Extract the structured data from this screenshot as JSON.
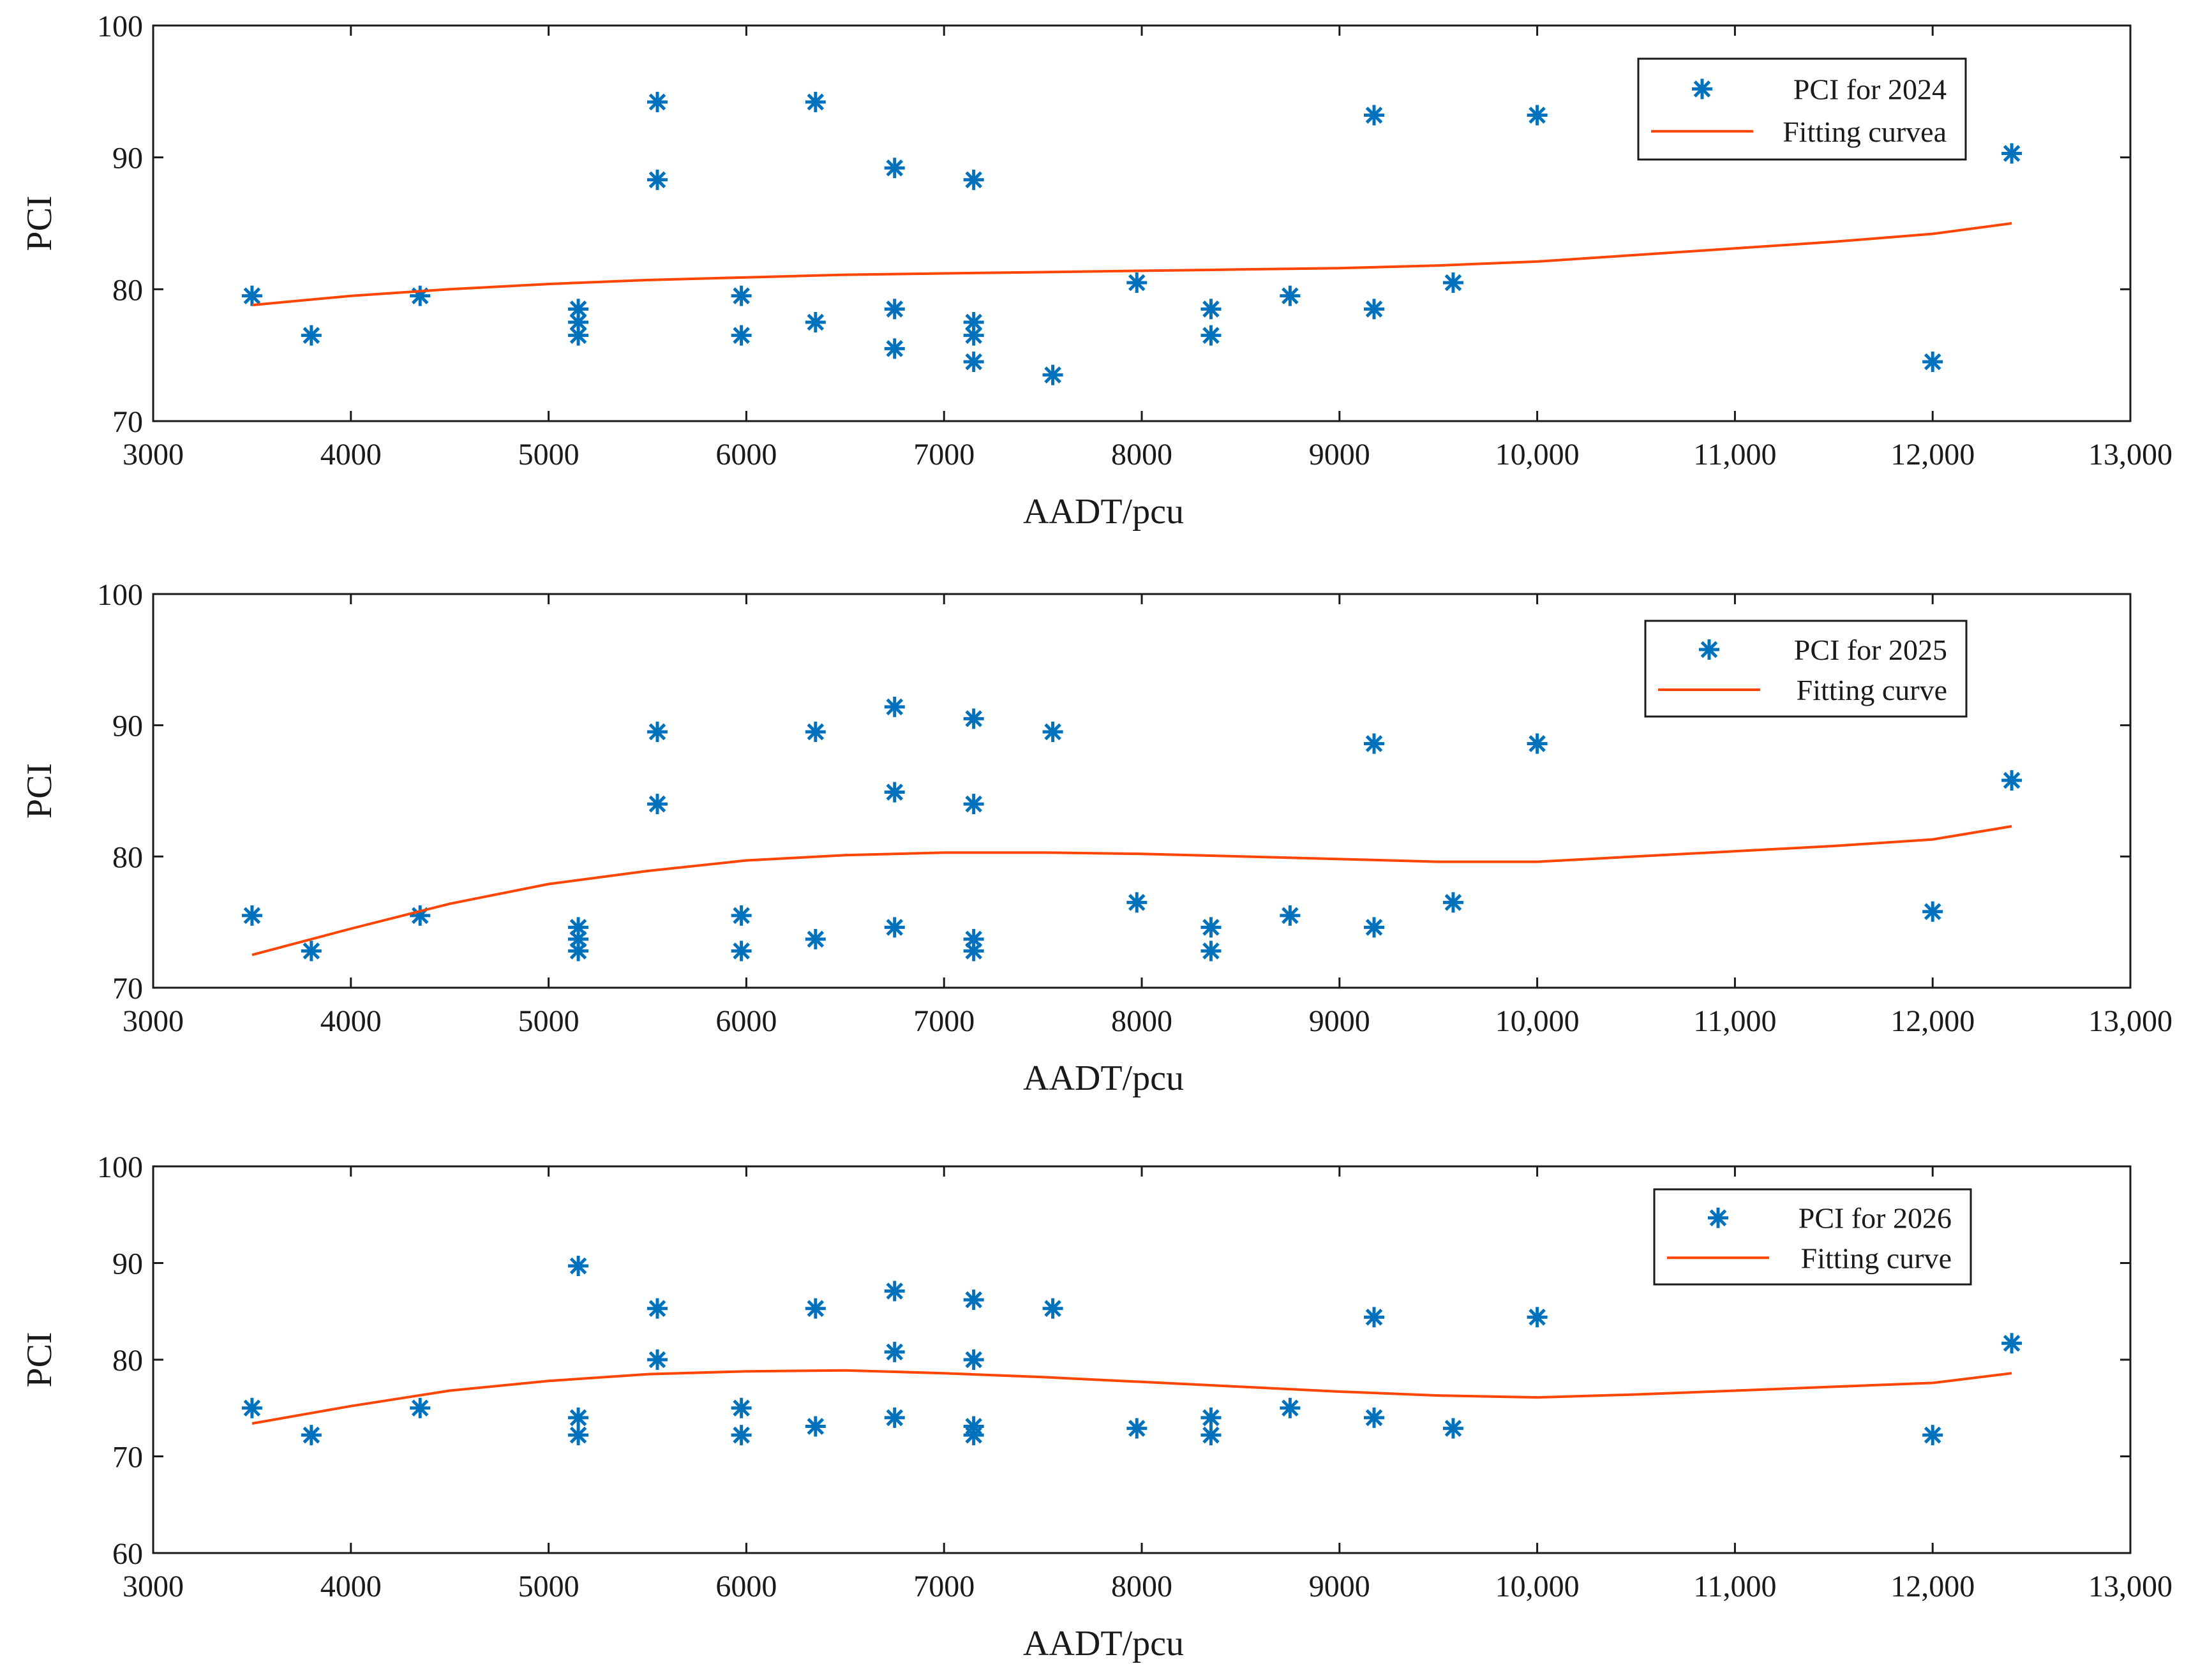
{
  "colors": {
    "marker": "#0072BD",
    "curve": "#FF4500",
    "axis": "#1a1a1a"
  },
  "chart_data": [
    {
      "type": "scatter",
      "xlabel": "AADT/pcu",
      "ylabel": "PCI",
      "xlim": [
        3000,
        13000
      ],
      "ylim": [
        70,
        100
      ],
      "xticks": [
        3000,
        4000,
        5000,
        6000,
        7000,
        8000,
        9000,
        10000,
        11000,
        12000,
        13000
      ],
      "xtick_labels": [
        "3000",
        "4000",
        "5000",
        "6000",
        "7000",
        "8000",
        "9000",
        "10,000",
        "11,000",
        "12,000",
        "13,000"
      ],
      "yticks": [
        70,
        80,
        90,
        100
      ],
      "ytick_labels": [
        "70",
        "80",
        "90",
        "100"
      ],
      "grid": false,
      "legend_position": "top-right",
      "series": [
        {
          "name": "PCI for 2024",
          "type": "scatter",
          "points": [
            [
              3500,
              79.5
            ],
            [
              3800,
              76.5
            ],
            [
              4350,
              79.5
            ],
            [
              5150,
              78.5
            ],
            [
              5150,
              77.5
            ],
            [
              5150,
              76.5
            ],
            [
              5550,
              94.2
            ],
            [
              5550,
              88.3
            ],
            [
              5975,
              79.5
            ],
            [
              5975,
              76.5
            ],
            [
              6350,
              94.2
            ],
            [
              6350,
              77.5
            ],
            [
              6750,
              89.2
            ],
            [
              6750,
              78.5
            ],
            [
              6750,
              75.5
            ],
            [
              7150,
              88.3
            ],
            [
              7150,
              77.5
            ],
            [
              7150,
              76.5
            ],
            [
              7150,
              74.5
            ],
            [
              7550,
              73.5
            ],
            [
              7975,
              80.5
            ],
            [
              8350,
              78.5
            ],
            [
              8350,
              76.5
            ],
            [
              8750,
              79.5
            ],
            [
              9175,
              93.2
            ],
            [
              9175,
              78.5
            ],
            [
              9575,
              80.5
            ],
            [
              10000,
              93.2
            ],
            [
              12000,
              74.5
            ],
            [
              12400,
              90.3
            ]
          ]
        },
        {
          "name": "Fitting curvea",
          "type": "line",
          "points": [
            [
              3500,
              78.8
            ],
            [
              4000,
              79.5
            ],
            [
              4500,
              80.0
            ],
            [
              5000,
              80.4
            ],
            [
              5500,
              80.7
            ],
            [
              6000,
              80.9
            ],
            [
              6500,
              81.1
            ],
            [
              7000,
              81.2
            ],
            [
              7500,
              81.3
            ],
            [
              8000,
              81.4
            ],
            [
              8500,
              81.5
            ],
            [
              9000,
              81.6
            ],
            [
              9500,
              81.8
            ],
            [
              10000,
              82.1
            ],
            [
              10500,
              82.6
            ],
            [
              11000,
              83.1
            ],
            [
              11500,
              83.6
            ],
            [
              12000,
              84.2
            ],
            [
              12400,
              85.0
            ]
          ]
        }
      ]
    },
    {
      "type": "scatter",
      "xlabel": "AADT/pcu",
      "ylabel": "PCI",
      "xlim": [
        3000,
        13000
      ],
      "ylim": [
        70,
        100
      ],
      "xticks": [
        3000,
        4000,
        5000,
        6000,
        7000,
        8000,
        9000,
        10000,
        11000,
        12000,
        13000
      ],
      "xtick_labels": [
        "3000",
        "4000",
        "5000",
        "6000",
        "7000",
        "8000",
        "9000",
        "10,000",
        "11,000",
        "12,000",
        "13,000"
      ],
      "yticks": [
        70,
        80,
        90,
        100
      ],
      "ytick_labels": [
        "70",
        "80",
        "90",
        "100"
      ],
      "grid": false,
      "legend_position": "top-right",
      "series": [
        {
          "name": "PCI for 2025",
          "type": "scatter",
          "points": [
            [
              3500,
              75.5
            ],
            [
              3800,
              72.8
            ],
            [
              4350,
              75.5
            ],
            [
              5150,
              74.6
            ],
            [
              5150,
              73.7
            ],
            [
              5150,
              72.8
            ],
            [
              5550,
              89.5
            ],
            [
              5550,
              84.0
            ],
            [
              5975,
              75.5
            ],
            [
              5975,
              72.8
            ],
            [
              6350,
              89.5
            ],
            [
              6350,
              73.7
            ],
            [
              6750,
              91.4
            ],
            [
              6750,
              84.9
            ],
            [
              6750,
              74.6
            ],
            [
              7150,
              90.5
            ],
            [
              7150,
              84.0
            ],
            [
              7150,
              73.7
            ],
            [
              7150,
              72.8
            ],
            [
              7550,
              89.5
            ],
            [
              7975,
              76.5
            ],
            [
              8350,
              74.6
            ],
            [
              8350,
              72.8
            ],
            [
              8750,
              75.5
            ],
            [
              9175,
              88.6
            ],
            [
              9175,
              74.6
            ],
            [
              9575,
              76.5
            ],
            [
              10000,
              88.6
            ],
            [
              12000,
              75.8
            ],
            [
              12400,
              85.8
            ]
          ]
        },
        {
          "name": "Fitting curve",
          "type": "line",
          "points": [
            [
              3500,
              72.5
            ],
            [
              4000,
              74.5
            ],
            [
              4500,
              76.4
            ],
            [
              5000,
              77.9
            ],
            [
              5500,
              78.9
            ],
            [
              6000,
              79.7
            ],
            [
              6500,
              80.1
            ],
            [
              7000,
              80.3
            ],
            [
              7500,
              80.3
            ],
            [
              8000,
              80.2
            ],
            [
              8500,
              80.0
            ],
            [
              9000,
              79.8
            ],
            [
              9500,
              79.6
            ],
            [
              10000,
              79.6
            ],
            [
              10500,
              80.0
            ],
            [
              11000,
              80.4
            ],
            [
              11500,
              80.8
            ],
            [
              12000,
              81.3
            ],
            [
              12400,
              82.3
            ]
          ]
        }
      ]
    },
    {
      "type": "scatter",
      "xlabel": "AADT/pcu",
      "ylabel": "PCI",
      "xlim": [
        3000,
        13000
      ],
      "ylim": [
        60,
        100
      ],
      "xticks": [
        3000,
        4000,
        5000,
        6000,
        7000,
        8000,
        9000,
        10000,
        11000,
        12000,
        13000
      ],
      "xtick_labels": [
        "3000",
        "4000",
        "5000",
        "6000",
        "7000",
        "8000",
        "9000",
        "10,000",
        "11,000",
        "12,000",
        "13,000"
      ],
      "yticks": [
        60,
        70,
        80,
        90,
        100
      ],
      "ytick_labels": [
        "60",
        "70",
        "80",
        "90",
        "100"
      ],
      "grid": false,
      "legend_position": "top-right",
      "series": [
        {
          "name": "PCI for 2026",
          "type": "scatter",
          "points": [
            [
              3500,
              75.0
            ],
            [
              3800,
              72.2
            ],
            [
              4350,
              75.0
            ],
            [
              5150,
              89.7
            ],
            [
              5150,
              74.0
            ],
            [
              5150,
              72.2
            ],
            [
              5550,
              85.3
            ],
            [
              5550,
              80.0
            ],
            [
              5975,
              75.0
            ],
            [
              5975,
              72.2
            ],
            [
              6350,
              85.3
            ],
            [
              6350,
              73.1
            ],
            [
              6750,
              87.1
            ],
            [
              6750,
              80.8
            ],
            [
              6750,
              74.0
            ],
            [
              7150,
              86.2
            ],
            [
              7150,
              80.0
            ],
            [
              7150,
              73.1
            ],
            [
              7150,
              72.2
            ],
            [
              7550,
              85.3
            ],
            [
              7975,
              72.9
            ],
            [
              8350,
              74.0
            ],
            [
              8350,
              72.2
            ],
            [
              8750,
              75.0
            ],
            [
              9175,
              84.4
            ],
            [
              9175,
              74.0
            ],
            [
              9575,
              72.9
            ],
            [
              10000,
              84.4
            ],
            [
              12000,
              72.2
            ],
            [
              12400,
              81.7
            ]
          ]
        },
        {
          "name": "Fitting curve",
          "type": "line",
          "points": [
            [
              3500,
              73.4
            ],
            [
              4000,
              75.2
            ],
            [
              4500,
              76.8
            ],
            [
              5000,
              77.8
            ],
            [
              5500,
              78.5
            ],
            [
              6000,
              78.8
            ],
            [
              6500,
              78.9
            ],
            [
              7000,
              78.6
            ],
            [
              7500,
              78.2
            ],
            [
              8000,
              77.7
            ],
            [
              8500,
              77.2
            ],
            [
              9000,
              76.7
            ],
            [
              9500,
              76.3
            ],
            [
              10000,
              76.1
            ],
            [
              10500,
              76.4
            ],
            [
              11000,
              76.8
            ],
            [
              11500,
              77.2
            ],
            [
              12000,
              77.6
            ],
            [
              12400,
              78.6
            ]
          ]
        }
      ]
    }
  ]
}
